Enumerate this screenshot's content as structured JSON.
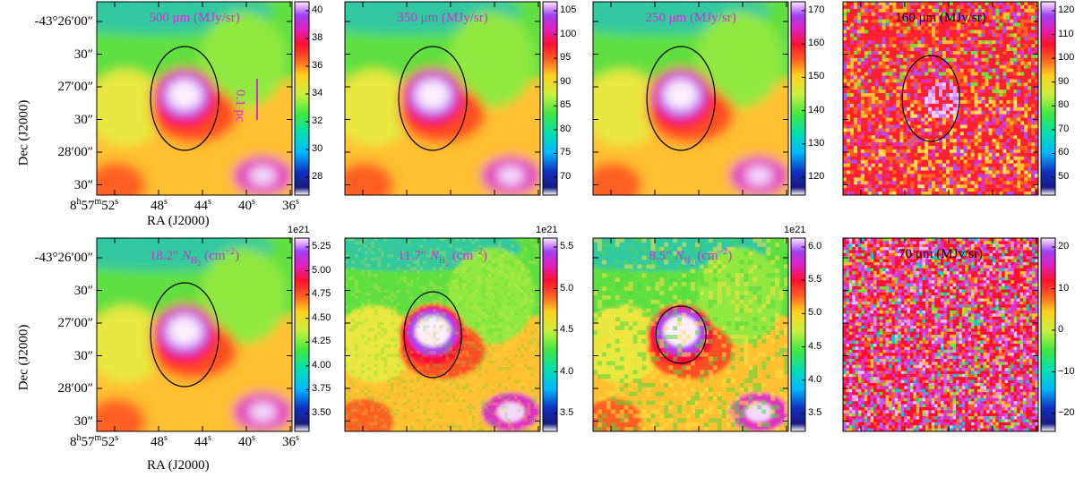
{
  "figure": {
    "axis_labels": {
      "dec": "Dec (J2000)",
      "ra": "RA (J2000)"
    },
    "dec_ticks": [
      "-43°26′00″",
      "30″",
      "27′00″",
      "30″",
      "28′00″",
      "30″"
    ],
    "ra_ticks": [
      {
        "h": "8",
        "hs": "h",
        "m": "57",
        "ms": "m",
        "s": "52",
        "ss": "s"
      },
      {
        "s": "48",
        "ss": "s"
      },
      {
        "s": "44",
        "ss": "s"
      },
      {
        "s": "40",
        "ss": "s"
      },
      {
        "s": "36",
        "ss": "s"
      }
    ],
    "scale_bar": "0.1 pc",
    "panels": [
      {
        "title": "500 μm (MJy/sr)",
        "title_color": "#cc33cc",
        "cbar_ticks": [
          "40",
          "38",
          "36",
          "34",
          "32",
          "30",
          "28"
        ],
        "style": "smooth",
        "ellipse": "large"
      },
      {
        "title": "350 μm (MJy/sr)",
        "title_color": "#cc33cc",
        "cbar_ticks": [
          "105",
          "100",
          "95",
          "90",
          "85",
          "80",
          "75",
          "70"
        ],
        "style": "smooth",
        "ellipse": "large"
      },
      {
        "title": "250 μm (MJy/sr)",
        "title_color": "#cc33cc",
        "cbar_ticks": [
          "170",
          "160",
          "150",
          "140",
          "130",
          "120"
        ],
        "style": "smooth",
        "ellipse": "large"
      },
      {
        "title": "160 μm (MJy/sr)",
        "title_color": "#000000",
        "cbar_ticks": [
          "120",
          "110",
          "100",
          "90",
          "80",
          "70",
          "60",
          "50"
        ],
        "style": "noisy",
        "ellipse": "medium"
      },
      {
        "title_pre": "18.2″ ",
        "title_color": "#cc33cc",
        "cbar_ticks": [
          "5.25",
          "5.00",
          "4.75",
          "4.50",
          "4.25",
          "4.00",
          "3.75",
          "3.50"
        ],
        "cbar_exp": "1e21",
        "style": "smooth",
        "ellipse": "large"
      },
      {
        "title_pre": "11.7″ ",
        "title_color": "#cc33cc",
        "cbar_ticks": [
          "5.5",
          "5.0",
          "4.5",
          "4.0",
          "3.5"
        ],
        "cbar_exp": "1e21",
        "style": "semi",
        "ellipse": "medium"
      },
      {
        "title_pre": "8.5″ ",
        "title_color": "#cc33cc",
        "cbar_ticks": [
          "6.0",
          "5.5",
          "5.0",
          "4.5",
          "4.0",
          "3.5"
        ],
        "cbar_exp": "1e21",
        "style": "grainy",
        "ellipse": "small"
      },
      {
        "title": "70 μm (MJy/sr)",
        "title_color": "#000000",
        "cbar_ticks": [
          "20",
          "10",
          "0",
          "−10",
          "−20"
        ],
        "style": "random",
        "ellipse": "none"
      }
    ]
  }
}
